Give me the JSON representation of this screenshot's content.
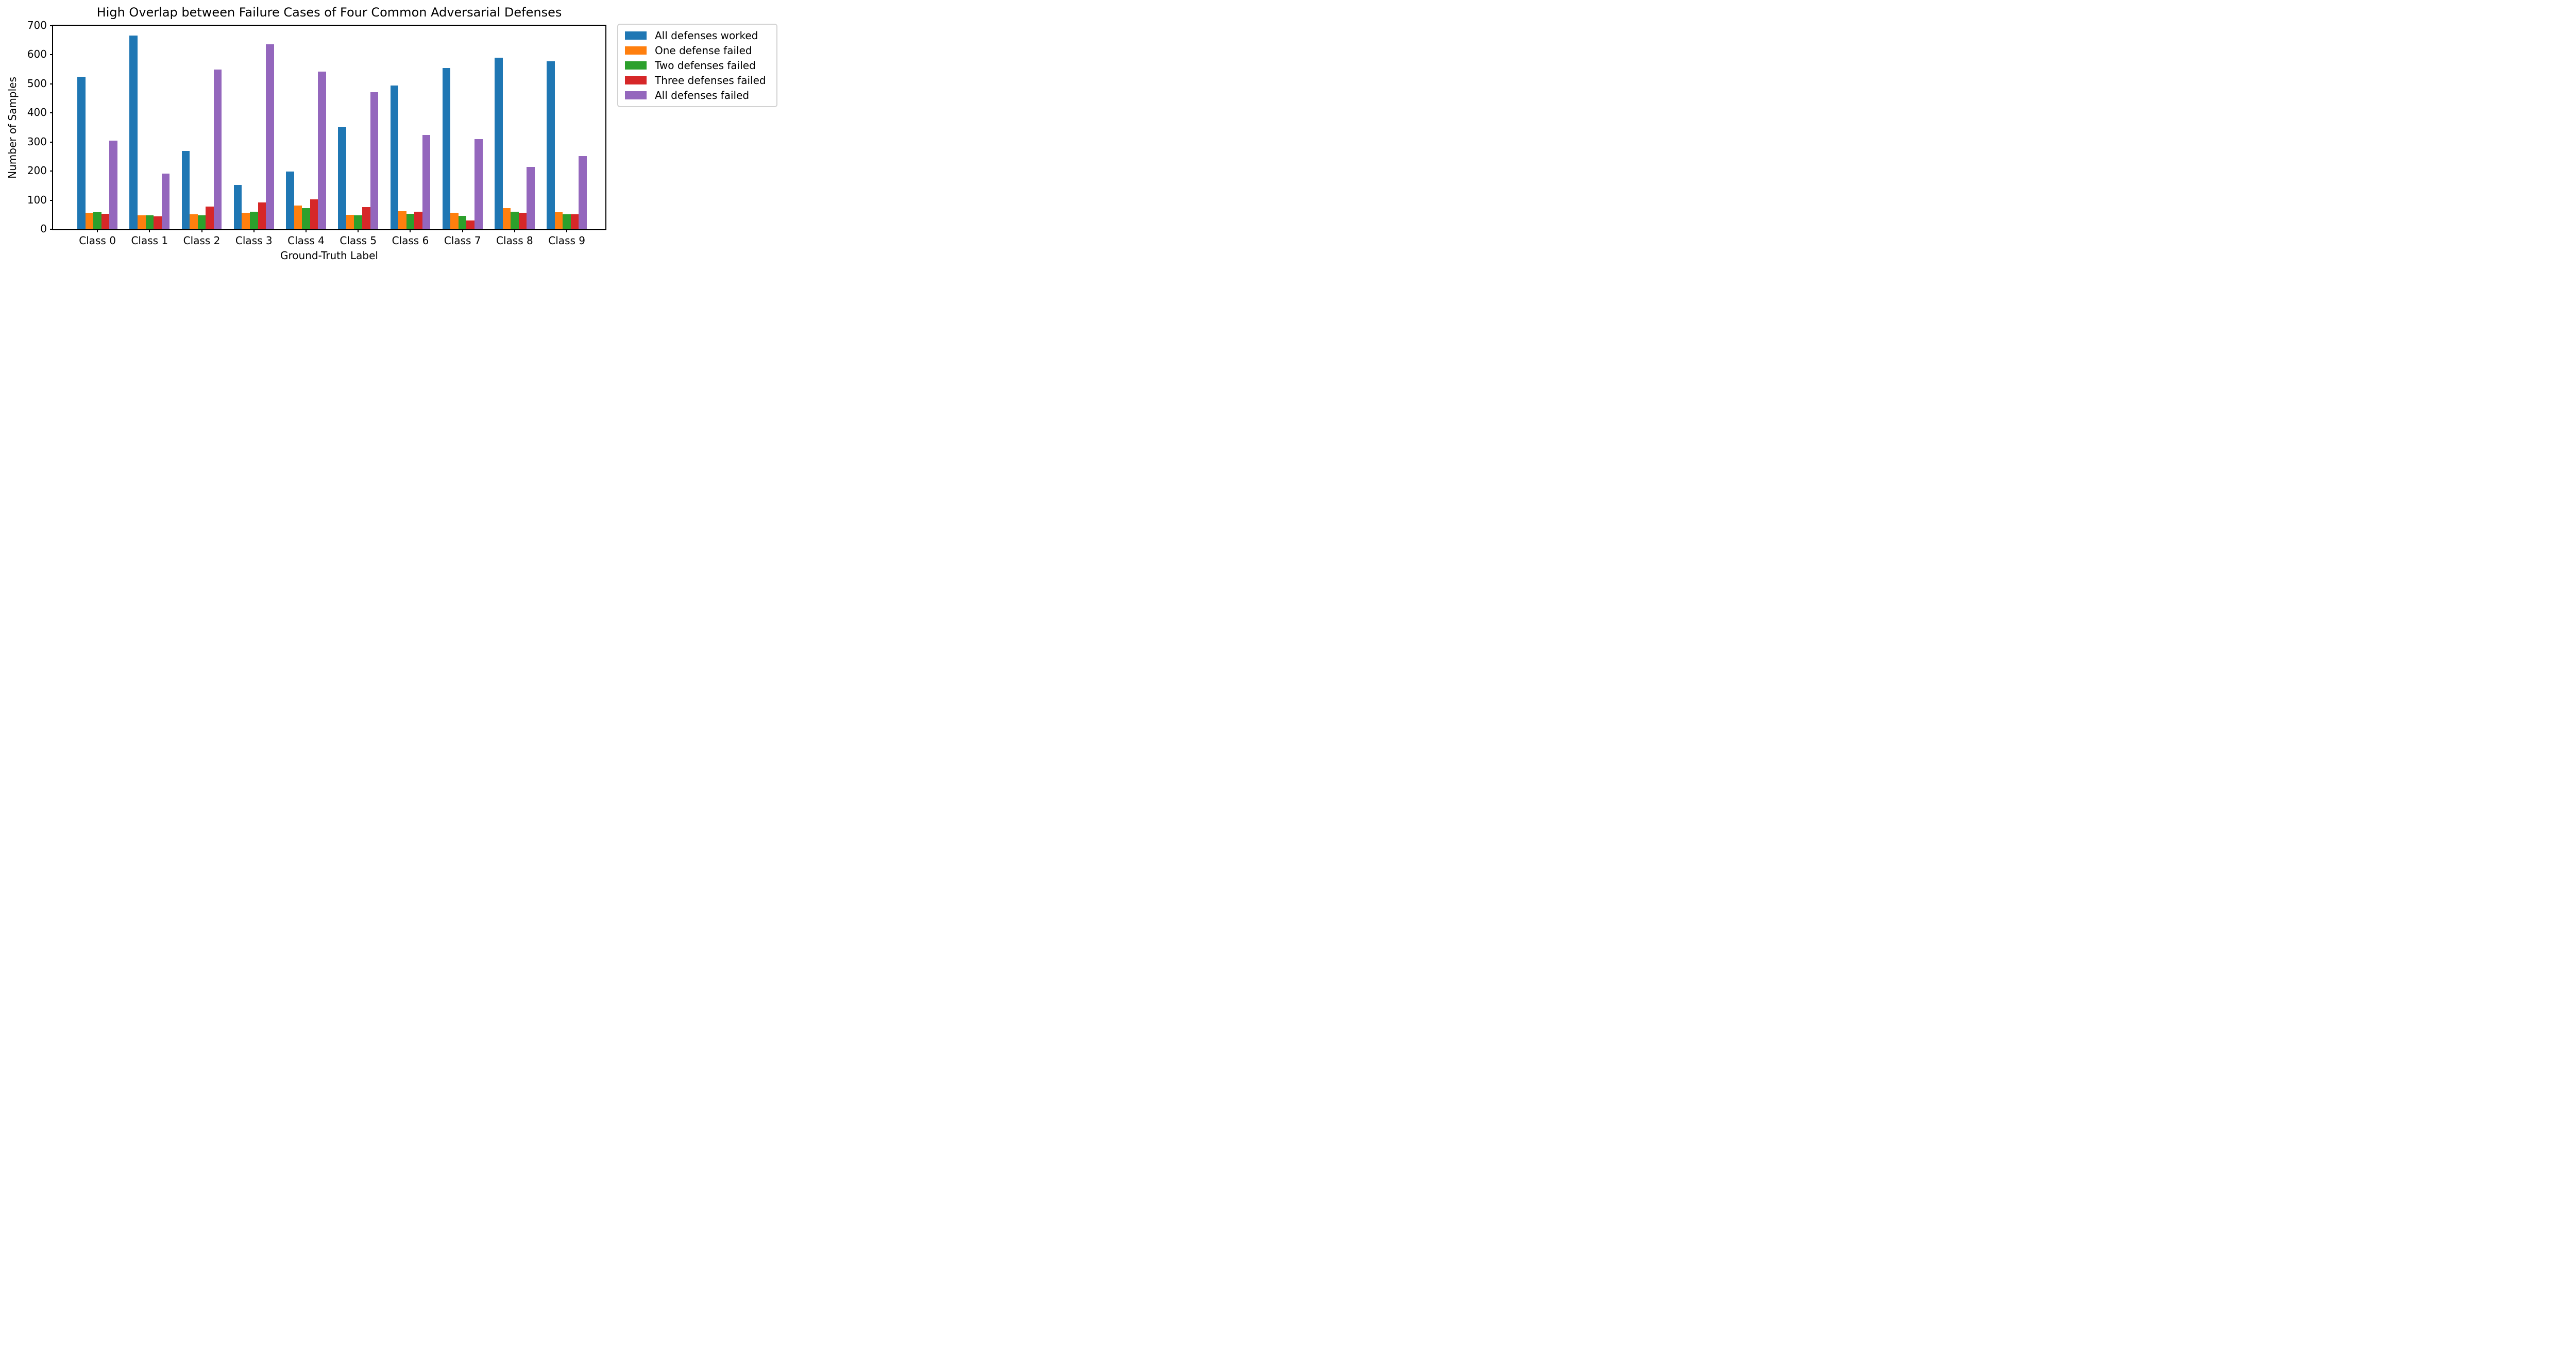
{
  "chart_data": {
    "type": "bar",
    "title": "High Overlap between Failure Cases of Four Common Adversarial Defenses",
    "xlabel": "Ground-Truth Label",
    "ylabel": "Number of Samples",
    "categories": [
      "Class 0",
      "Class 1",
      "Class 2",
      "Class 3",
      "Class 4",
      "Class 5",
      "Class 6",
      "Class 7",
      "Class 8",
      "Class 9"
    ],
    "ylim": [
      0,
      700
    ],
    "yticks": [
      0,
      100,
      200,
      300,
      400,
      500,
      600,
      700
    ],
    "grid": false,
    "legend_position": "upper right, outside plot",
    "series": [
      {
        "name": "All defenses worked",
        "color": "#1f77b4",
        "values": [
          525,
          667,
          270,
          152,
          199,
          351,
          494,
          554,
          590,
          578
        ]
      },
      {
        "name": "One defense failed",
        "color": "#ff7f0e",
        "values": [
          57,
          48,
          52,
          57,
          82,
          49,
          62,
          56,
          72,
          59
        ]
      },
      {
        "name": "Two defenses failed",
        "color": "#2ca02c",
        "values": [
          58,
          47,
          48,
          61,
          73,
          48,
          53,
          46,
          60,
          52
        ]
      },
      {
        "name": "Three defenses failed",
        "color": "#d62728",
        "values": [
          54,
          44,
          78,
          93,
          102,
          77,
          61,
          31,
          56,
          52
        ]
      },
      {
        "name": "All defenses failed",
        "color": "#9467bd",
        "values": [
          305,
          192,
          550,
          637,
          542,
          471,
          325,
          310,
          215,
          252
        ]
      }
    ]
  }
}
